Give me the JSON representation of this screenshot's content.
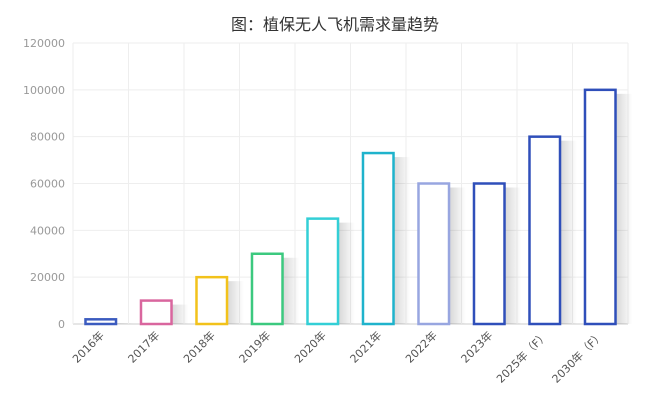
{
  "chart_data": {
    "type": "bar",
    "title": "图：植保无人飞机需求量趋势",
    "xlabel": "",
    "ylabel": "",
    "categories": [
      "2016年",
      "2017年",
      "2018年",
      "2019年",
      "2020年",
      "2021年",
      "2022年",
      "2023年",
      "2025年（F）",
      "2030年（F）"
    ],
    "values": [
      2000,
      10000,
      20000,
      30000,
      45000,
      73000,
      60000,
      60000,
      80000,
      100000
    ],
    "ylim": [
      0,
      120000
    ],
    "yticks": [
      "0",
      "20000",
      "40000",
      "60000",
      "80000",
      "100000",
      "120000"
    ],
    "grid": true,
    "legend": "none",
    "bar_style": "outlined-with-shadow",
    "bar_colors": [
      "#3b5bbf",
      "#d9669e",
      "#f2c21b",
      "#3cc97f",
      "#33cfd6",
      "#1fb3cc",
      "#98a6e0",
      "#2f4fba",
      "#2f4fba",
      "#2f4fba"
    ]
  }
}
